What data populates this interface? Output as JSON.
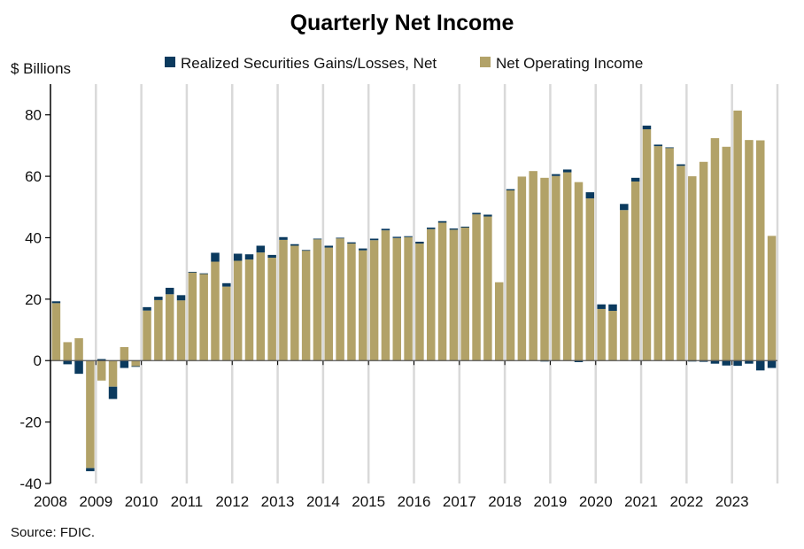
{
  "chart_data": {
    "type": "bar",
    "stacked": true,
    "title": "Quarterly Net Income",
    "ylabel": "$ Billions",
    "xlabel": "",
    "source": "Source: FDIC.",
    "ylim": [
      -40,
      90
    ],
    "yticks": [
      -40,
      -20,
      0,
      20,
      40,
      60,
      80
    ],
    "grid": "vertical lines at year boundaries",
    "legend_position": "top",
    "years": [
      "2008",
      "2009",
      "2010",
      "2011",
      "2012",
      "2013",
      "2014",
      "2015",
      "2016",
      "2017",
      "2018",
      "2019",
      "2020",
      "2021",
      "2022",
      "2023"
    ],
    "quarters_per_year": 4,
    "series": [
      {
        "name": "Realized Securities Gains/Losses, Net",
        "color": "#0b3a5e",
        "values": [
          0.6,
          -1.2,
          -4.3,
          -1.0,
          0.5,
          -4.0,
          -2.4,
          -0.2,
          1.1,
          1.1,
          2.1,
          1.7,
          0.2,
          0.2,
          2.9,
          1.1,
          2.3,
          1.7,
          2.2,
          0.9,
          0.9,
          0.5,
          0.2,
          0.2,
          0.6,
          0.2,
          0.4,
          0.6,
          0.5,
          0.5,
          0.4,
          0.3,
          0.6,
          0.5,
          0.5,
          0.4,
          0.3,
          0.5,
          0.6,
          0.0,
          0.4,
          0.0,
          0.0,
          -0.3,
          0.6,
          0.9,
          -0.5,
          2.0,
          1.5,
          2.1,
          2.0,
          1.2,
          1.2,
          0.5,
          0.2,
          0.5,
          -0.3,
          -0.4,
          -1.0,
          -1.6,
          -1.7,
          -1.0,
          -3.2,
          -2.4
        ]
      },
      {
        "name": "Net Operating Income",
        "color": "#b2a268",
        "values": [
          18.7,
          6.0,
          7.3,
          -35.0,
          -6.5,
          -8.5,
          4.4,
          -1.8,
          16.3,
          19.7,
          21.6,
          19.6,
          28.7,
          28.2,
          32.2,
          24.1,
          32.5,
          32.9,
          35.2,
          33.5,
          39.3,
          37.4,
          35.8,
          39.5,
          36.8,
          39.8,
          38.1,
          35.9,
          39.2,
          42.4,
          39.9,
          40.2,
          38.1,
          42.8,
          44.9,
          42.6,
          43.3,
          47.6,
          46.9,
          25.5,
          55.4,
          59.9,
          61.7,
          59.5,
          60.1,
          61.3,
          58.1,
          52.8,
          16.8,
          16.2,
          49.0,
          58.3,
          75.3,
          69.8,
          69.2,
          63.4,
          60.0,
          64.7,
          72.4,
          69.6,
          81.4,
          71.8,
          71.7,
          40.6
        ]
      }
    ]
  }
}
